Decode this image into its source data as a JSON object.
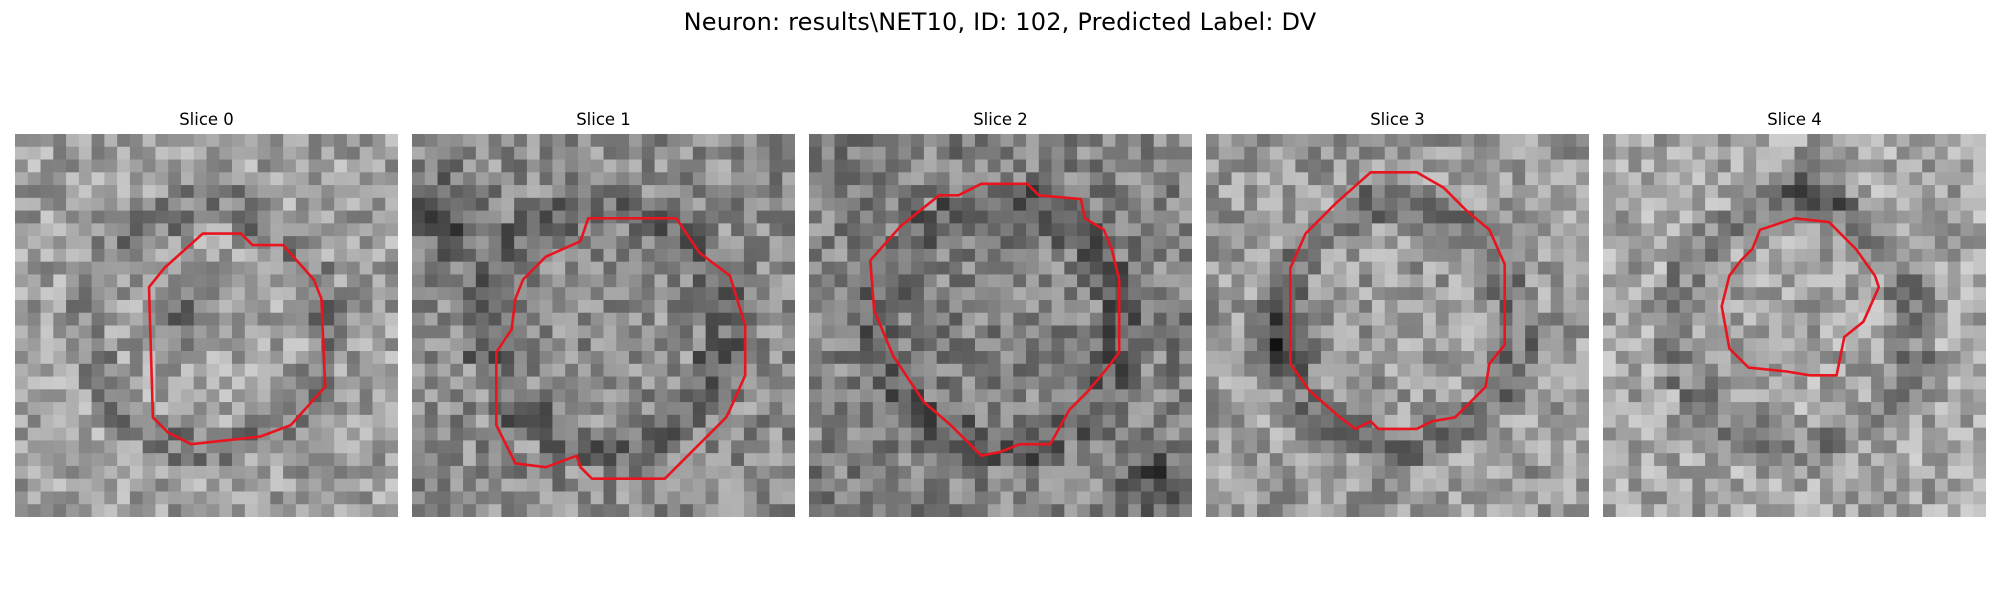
{
  "figure": {
    "title": "Neuron: results\\NET10, ID: 102, Predicted Label: DV"
  },
  "panels": [
    {
      "title": "Slice 0",
      "seed": 11,
      "contour": [
        [
          0.49,
          0.26
        ],
        [
          0.59,
          0.26
        ],
        [
          0.62,
          0.29
        ],
        [
          0.7,
          0.29
        ],
        [
          0.78,
          0.38
        ],
        [
          0.8,
          0.43
        ],
        [
          0.81,
          0.66
        ],
        [
          0.72,
          0.76
        ],
        [
          0.64,
          0.79
        ],
        [
          0.46,
          0.81
        ],
        [
          0.4,
          0.78
        ],
        [
          0.36,
          0.74
        ],
        [
          0.35,
          0.4
        ],
        [
          0.39,
          0.35
        ]
      ],
      "dark_blob": [
        0.45,
        0.45,
        0.12
      ],
      "gray_mean": 160
    },
    {
      "title": "Slice 1",
      "seed": 23,
      "contour": [
        [
          0.46,
          0.22
        ],
        [
          0.69,
          0.22
        ],
        [
          0.75,
          0.31
        ],
        [
          0.83,
          0.37
        ],
        [
          0.87,
          0.5
        ],
        [
          0.87,
          0.63
        ],
        [
          0.83,
          0.72
        ],
        [
          0.82,
          0.74
        ],
        [
          0.66,
          0.9
        ],
        [
          0.47,
          0.9
        ],
        [
          0.44,
          0.87
        ],
        [
          0.43,
          0.84
        ],
        [
          0.35,
          0.87
        ],
        [
          0.27,
          0.86
        ],
        [
          0.22,
          0.76
        ],
        [
          0.22,
          0.57
        ],
        [
          0.26,
          0.51
        ],
        [
          0.27,
          0.43
        ],
        [
          0.29,
          0.38
        ],
        [
          0.35,
          0.32
        ],
        [
          0.44,
          0.28
        ]
      ],
      "dark_blob": [
        0.1,
        0.22,
        0.16
      ],
      "gray_mean": 140
    },
    {
      "title": "Slice 2",
      "seed": 37,
      "contour": [
        [
          0.34,
          0.16
        ],
        [
          0.39,
          0.16
        ],
        [
          0.45,
          0.13
        ],
        [
          0.57,
          0.13
        ],
        [
          0.6,
          0.16
        ],
        [
          0.71,
          0.17
        ],
        [
          0.72,
          0.22
        ],
        [
          0.77,
          0.25
        ],
        [
          0.79,
          0.3
        ],
        [
          0.81,
          0.38
        ],
        [
          0.81,
          0.57
        ],
        [
          0.78,
          0.61
        ],
        [
          0.73,
          0.67
        ],
        [
          0.68,
          0.72
        ],
        [
          0.63,
          0.81
        ],
        [
          0.55,
          0.81
        ],
        [
          0.5,
          0.83
        ],
        [
          0.45,
          0.84
        ],
        [
          0.4,
          0.79
        ],
        [
          0.37,
          0.76
        ],
        [
          0.3,
          0.7
        ],
        [
          0.22,
          0.58
        ],
        [
          0.17,
          0.46
        ],
        [
          0.16,
          0.33
        ],
        [
          0.24,
          0.24
        ]
      ],
      "dark_blob": [
        0.9,
        0.9,
        0.12
      ],
      "gray_mean": 130
    },
    {
      "title": "Slice 3",
      "seed": 49,
      "contour": [
        [
          0.43,
          0.1
        ],
        [
          0.55,
          0.1
        ],
        [
          0.62,
          0.14
        ],
        [
          0.68,
          0.2
        ],
        [
          0.74,
          0.25
        ],
        [
          0.78,
          0.34
        ],
        [
          0.78,
          0.55
        ],
        [
          0.74,
          0.6
        ],
        [
          0.73,
          0.66
        ],
        [
          0.65,
          0.74
        ],
        [
          0.59,
          0.75
        ],
        [
          0.55,
          0.77
        ],
        [
          0.52,
          0.77
        ],
        [
          0.45,
          0.77
        ],
        [
          0.43,
          0.75
        ],
        [
          0.39,
          0.77
        ],
        [
          0.35,
          0.74
        ],
        [
          0.27,
          0.67
        ],
        [
          0.22,
          0.6
        ],
        [
          0.22,
          0.35
        ],
        [
          0.26,
          0.26
        ],
        [
          0.34,
          0.18
        ]
      ],
      "dark_blob": [
        0.2,
        0.55,
        0.14
      ],
      "gray_mean": 155
    },
    {
      "title": "Slice 4",
      "seed": 61,
      "contour": [
        [
          0.41,
          0.25
        ],
        [
          0.5,
          0.22
        ],
        [
          0.59,
          0.23
        ],
        [
          0.66,
          0.3
        ],
        [
          0.71,
          0.37
        ],
        [
          0.72,
          0.4
        ],
        [
          0.68,
          0.49
        ],
        [
          0.63,
          0.53
        ],
        [
          0.61,
          0.63
        ],
        [
          0.54,
          0.63
        ],
        [
          0.48,
          0.62
        ],
        [
          0.38,
          0.61
        ],
        [
          0.33,
          0.56
        ],
        [
          0.31,
          0.45
        ],
        [
          0.33,
          0.37
        ],
        [
          0.36,
          0.33
        ],
        [
          0.39,
          0.3
        ]
      ],
      "dark_blob": [
        0.55,
        0.15,
        0.14
      ],
      "gray_mean": 165
    }
  ],
  "colors": {
    "contour": "#e8141e",
    "background": "#ffffff"
  }
}
